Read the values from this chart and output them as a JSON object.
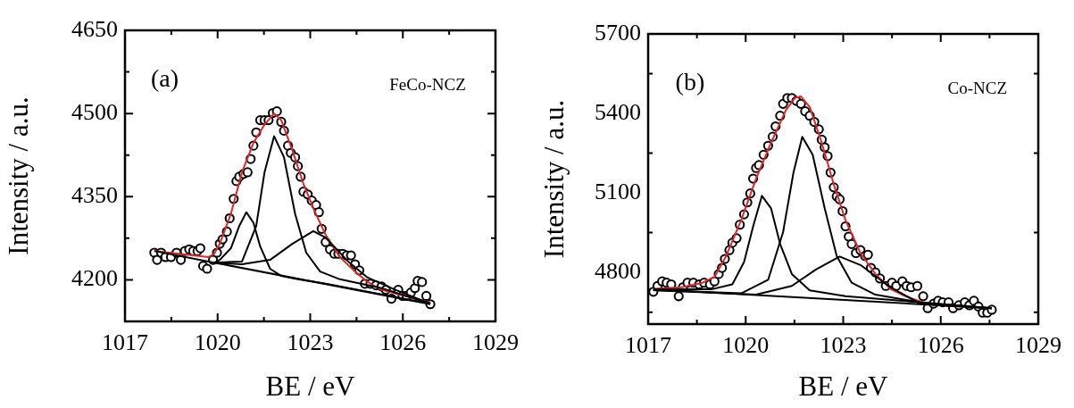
{
  "chart_data": [
    {
      "type": "line",
      "xlabel": "BE / eV",
      "ylabel": "Intensity / a.u.",
      "annotations": [
        "(a)",
        "FeCo-NCZ"
      ],
      "xlim": [
        1017,
        1029
      ],
      "xticks": [
        1017,
        {
          "value": 1018.5,
          "label": null
        },
        1020,
        {
          "value": 1021.5,
          "label": null
        },
        1023,
        {
          "value": 1024.5,
          "label": null
        },
        1026,
        {
          "value": 1027.5,
          "label": null
        },
        1029
      ],
      "ylim": [
        4125,
        4650
      ],
      "yticks": [
        4200,
        {
          "value": 4275,
          "label": null
        },
        4350,
        {
          "value": 4425,
          "label": null
        },
        4500,
        {
          "value": 4575,
          "label": null
        },
        4650
      ],
      "series": [
        {
          "type": "scatter",
          "marker": "circle",
          "color": "#000000",
          "x": [
            1017.95,
            1018.04,
            1018.17,
            1018.31,
            1018.49,
            1018.67,
            1018.81,
            1018.94,
            1019.08,
            1019.21,
            1019.35,
            1019.44,
            1019.53,
            1019.66,
            1019.85,
            1019.98,
            1020.07,
            1020.16,
            1020.3,
            1020.39,
            1020.52,
            1020.61,
            1020.7,
            1020.84,
            1020.97,
            1021.07,
            1021.16,
            1021.25,
            1021.38,
            1021.52,
            1021.65,
            1021.79,
            1021.92,
            1022.06,
            1022.15,
            1022.28,
            1022.37,
            1022.51,
            1022.6,
            1022.69,
            1022.78,
            1022.92,
            1023.05,
            1023.19,
            1023.28,
            1023.37,
            1023.5,
            1023.64,
            1023.78,
            1023.91,
            1024.05,
            1024.18,
            1024.32,
            1024.45,
            1024.59,
            1024.77,
            1024.95,
            1025.13,
            1025.31,
            1025.45,
            1025.63,
            1025.85,
            1025.99,
            1026.12,
            1026.26,
            1026.39,
            1026.48,
            1026.62,
            1026.76,
            1026.89
          ],
          "values": [
            4249,
            4236,
            4249,
            4241,
            4241,
            4249,
            4236,
            4252,
            4255,
            4252,
            4252,
            4257,
            4225,
            4220,
            4236,
            4249,
            4265,
            4273,
            4287,
            4311,
            4346,
            4378,
            4386,
            4391,
            4394,
            4418,
            4442,
            4466,
            4488,
            4488,
            4488,
            4501,
            4504,
            4485,
            4469,
            4442,
            4429,
            4421,
            4405,
            4386,
            4359,
            4354,
            4343,
            4335,
            4322,
            4292,
            4268,
            4255,
            4247,
            4247,
            4247,
            4244,
            4244,
            4228,
            4217,
            4193,
            4193,
            4190,
            4188,
            4182,
            4166,
            4182,
            4171,
            4171,
            4177,
            4185,
            4198,
            4196,
            4171,
            4156
          ]
        },
        {
          "marker": "none",
          "color": "#000000",
          "x": [
            1017.95,
            1019.89,
            1026.89
          ],
          "values": [
            4252,
            4231,
            4156
          ]
        },
        {
          "marker": "none",
          "color": "#000000",
          "x": [
            1019.89,
            1020.07,
            1020.43,
            1020.7,
            1020.93,
            1021.16,
            1021.38,
            1021.7,
            1022.06,
            1022.6,
            1023.5,
            1026.89
          ],
          "values": [
            4231,
            4236,
            4257,
            4297,
            4322,
            4303,
            4260,
            4220,
            4207,
            4201,
            4193,
            4157
          ]
        },
        {
          "marker": "none",
          "color": "#000000",
          "x": [
            1019.89,
            1020.79,
            1021.25,
            1021.52,
            1021.83,
            1022.15,
            1022.51,
            1022.87,
            1023.32,
            1023.96,
            1025.31,
            1026.89
          ],
          "values": [
            4231,
            4233,
            4297,
            4394,
            4459,
            4421,
            4319,
            4249,
            4215,
            4201,
            4185,
            4157
          ]
        },
        {
          "marker": "none",
          "color": "#000000",
          "x": [
            1019.89,
            1020.79,
            1021.7,
            1022.42,
            1023.1,
            1023.5,
            1024.23,
            1024.86,
            1025.76,
            1026.89
          ],
          "values": [
            4231,
            4228,
            4236,
            4265,
            4288,
            4276,
            4233,
            4204,
            4182,
            4157
          ]
        },
        {
          "marker": "none",
          "color": "#e0262a",
          "x": [
            1017.95,
            1019.71,
            1019.89,
            1020.07,
            1020.43,
            1020.79,
            1021.16,
            1021.52,
            1021.83,
            1022.06,
            1022.42,
            1022.78,
            1023.14,
            1023.5,
            1023.96,
            1024.41,
            1024.86,
            1025.31,
            1026.21,
            1026.89
          ],
          "values": [
            4252,
            4241,
            4247,
            4265,
            4319,
            4394,
            4447,
            4480,
            4500,
            4488,
            4434,
            4373,
            4324,
            4281,
            4241,
            4217,
            4196,
            4182,
            4169,
            4159
          ]
        }
      ]
    },
    {
      "type": "line",
      "xlabel": "BE / eV",
      "ylabel": "Intensity / a.u.",
      "annotations": [
        "(b)",
        "Co-NCZ"
      ],
      "xlim": [
        1017,
        1029
      ],
      "xticks": [
        1017,
        {
          "value": 1018.5,
          "label": null
        },
        1020,
        {
          "value": 1021.5,
          "label": null
        },
        1023,
        {
          "value": 1024.5,
          "label": null
        },
        1026,
        {
          "value": 1027.5,
          "label": null
        },
        1029
      ],
      "ylim": [
        4605,
        5700
      ],
      "yticks": [
        {
          "value": 4650,
          "label": null
        },
        4800,
        {
          "value": 4950,
          "label": null
        },
        5100,
        {
          "value": 5250,
          "label": null
        },
        5400,
        {
          "value": 5550,
          "label": null
        },
        5700
      ],
      "series": [
        {
          "type": "scatter",
          "marker": "circle",
          "color": "#000000",
          "x": [
            1017.16,
            1017.29,
            1017.43,
            1017.57,
            1017.71,
            1017.94,
            1018.07,
            1018.21,
            1018.39,
            1018.57,
            1018.72,
            1018.9,
            1019.04,
            1019.17,
            1019.27,
            1019.36,
            1019.5,
            1019.59,
            1019.72,
            1019.82,
            1019.95,
            1020.05,
            1020.14,
            1020.23,
            1020.32,
            1020.41,
            1020.55,
            1020.69,
            1020.83,
            1020.92,
            1021.06,
            1021.15,
            1021.28,
            1021.42,
            1021.56,
            1021.7,
            1021.83,
            1021.97,
            1022.11,
            1022.25,
            1022.34,
            1022.43,
            1022.52,
            1022.61,
            1022.71,
            1022.8,
            1022.89,
            1022.98,
            1023.07,
            1023.17,
            1023.26,
            1023.39,
            1023.53,
            1023.67,
            1023.76,
            1023.85,
            1023.99,
            1024.13,
            1024.31,
            1024.5,
            1024.63,
            1024.82,
            1024.95,
            1025.09,
            1025.28,
            1025.46,
            1025.6,
            1025.78,
            1025.92,
            1026.06,
            1026.24,
            1026.38,
            1026.56,
            1026.74,
            1026.88,
            1027.02,
            1027.16,
            1027.29,
            1027.43,
            1027.57
          ],
          "values": [
            4727,
            4749,
            4766,
            4761,
            4755,
            4710,
            4744,
            4761,
            4761,
            4755,
            4761,
            4755,
            4766,
            4794,
            4817,
            4851,
            4884,
            4912,
            4929,
            4980,
            5019,
            5064,
            5098,
            5154,
            5194,
            5205,
            5244,
            5278,
            5312,
            5351,
            5391,
            5436,
            5458,
            5458,
            5447,
            5436,
            5408,
            5391,
            5368,
            5340,
            5301,
            5272,
            5239,
            5177,
            5121,
            5087,
            5076,
            5031,
            4974,
            4935,
            4907,
            4873,
            4884,
            4862,
            4867,
            4817,
            4800,
            4777,
            4749,
            4761,
            4749,
            4766,
            4749,
            4744,
            4749,
            4710,
            4665,
            4682,
            4693,
            4687,
            4687,
            4665,
            4676,
            4687,
            4676,
            4693,
            4671,
            4648,
            4648,
            4659
          ]
        },
        {
          "marker": "none",
          "color": "#000000",
          "x": [
            1017.16,
            1027.57
          ],
          "values": [
            4736,
            4665
          ]
        },
        {
          "marker": "none",
          "color": "#000000",
          "x": [
            1017.16,
            1018.94,
            1019.59,
            1019.95,
            1020.23,
            1020.5,
            1020.78,
            1021.06,
            1021.42,
            1021.97,
            1023.07,
            1027.57
          ],
          "values": [
            4736,
            4736,
            4755,
            4839,
            4974,
            5089,
            5042,
            4907,
            4794,
            4732,
            4710,
            4665
          ]
        },
        {
          "marker": "none",
          "color": "#000000",
          "x": [
            1017.16,
            1019.86,
            1020.69,
            1021.15,
            1021.47,
            1021.74,
            1022.06,
            1022.43,
            1022.8,
            1023.26,
            1023.99,
            1025.37,
            1027.57
          ],
          "values": [
            4733,
            4721,
            4772,
            4952,
            5177,
            5312,
            5244,
            5042,
            4862,
            4761,
            4716,
            4687,
            4665
          ]
        },
        {
          "marker": "none",
          "color": "#000000",
          "x": [
            1017.16,
            1020.32,
            1021.42,
            1022.16,
            1022.89,
            1023.53,
            1024.45,
            1025.37,
            1027.57
          ],
          "values": [
            4733,
            4716,
            4749,
            4811,
            4860,
            4828,
            4744,
            4682,
            4665
          ]
        },
        {
          "marker": "none",
          "color": "#e0262a",
          "x": [
            1017.16,
            1018.03,
            1018.67,
            1019.04,
            1019.4,
            1019.86,
            1020.32,
            1020.78,
            1021.24,
            1021.51,
            1021.7,
            1021.97,
            1022.34,
            1022.71,
            1023.07,
            1023.53,
            1023.99,
            1024.45,
            1024.91,
            1025.46,
            1026.28,
            1027.57
          ],
          "values": [
            4738,
            4744,
            4761,
            4783,
            4862,
            4997,
            5154,
            5289,
            5413,
            5458,
            5464,
            5424,
            5289,
            5132,
            4997,
            4873,
            4794,
            4738,
            4710,
            4687,
            4673,
            4665
          ]
        }
      ]
    }
  ]
}
